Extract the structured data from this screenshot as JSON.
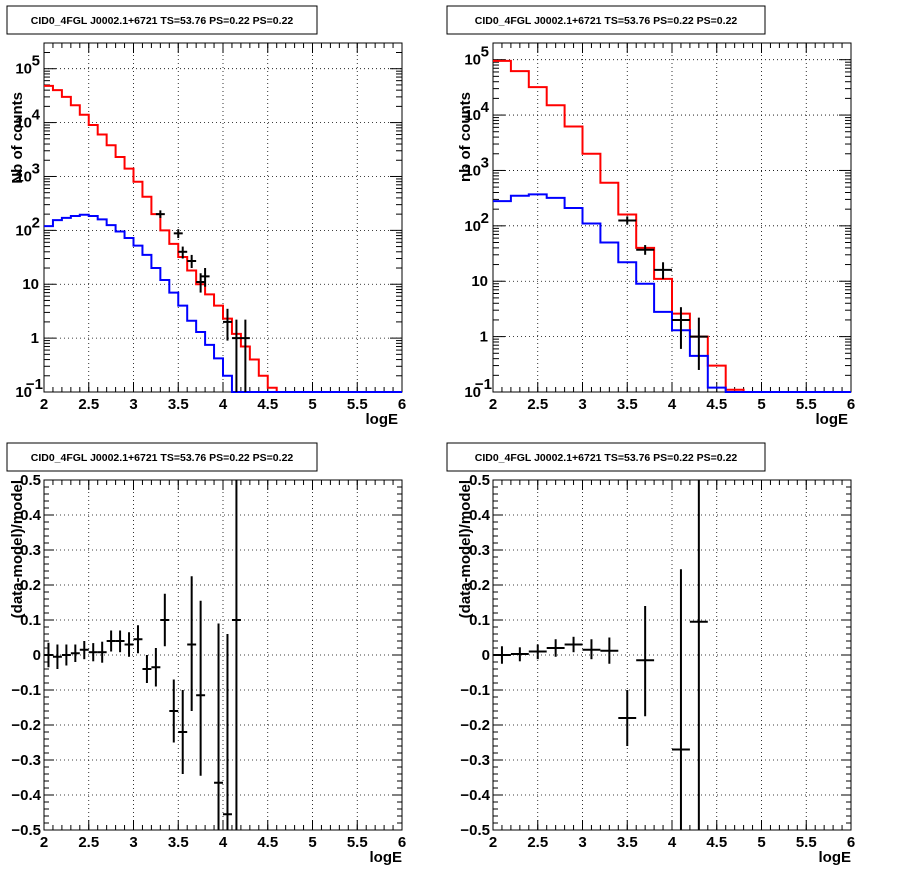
{
  "chart_data": [
    {
      "type": "line",
      "title": "CID0_4FGL J0002.1+6721 TS=53.76 PS=0.22 PS=0.22",
      "xlabel": "logE",
      "ylabel": "Nb of counts",
      "xlim": [
        2,
        6
      ],
      "ylim": [
        0.1,
        300000
      ],
      "yscale": "log",
      "grid": true,
      "x_ticks": [
        "2",
        "2.5",
        "3",
        "3.5",
        "4",
        "4.5",
        "5",
        "5.5",
        "6"
      ],
      "y_ticks": [
        {
          "value": 0.1,
          "label": "10",
          "exp": "−1"
        },
        {
          "value": 1,
          "label": "1",
          "exp": ""
        },
        {
          "value": 10,
          "label": "10",
          "exp": ""
        },
        {
          "value": 100,
          "label": "10",
          "exp": "2"
        },
        {
          "value": 1000,
          "label": "10",
          "exp": "3"
        },
        {
          "value": 10000,
          "label": "10",
          "exp": "4"
        },
        {
          "value": 100000,
          "label": "10",
          "exp": "5"
        }
      ],
      "bin_width": 0.1,
      "series": [
        {
          "color": "#ff0000",
          "style": "step",
          "x": [
            2.0,
            2.1,
            2.2,
            2.3,
            2.4,
            2.5,
            2.6,
            2.7,
            2.8,
            2.9,
            3.0,
            3.1,
            3.2,
            3.3,
            3.4,
            3.5,
            3.6,
            3.7,
            3.8,
            3.9,
            4.0,
            4.1,
            4.2,
            4.3,
            4.4,
            4.5,
            4.6,
            4.7,
            4.8,
            4.9,
            5.0,
            5.1,
            5.2,
            5.3,
            5.4,
            5.5,
            5.6,
            5.7,
            5.8,
            5.9
          ],
          "y": [
            48000,
            40000,
            30000,
            21000,
            14000,
            9000,
            6000,
            3800,
            2300,
            1400,
            800,
            420,
            200,
            100,
            56,
            32,
            18,
            10,
            6.5,
            4,
            2.3,
            1.2,
            0.7,
            0.4,
            0.2,
            0.12,
            0.1,
            0.1,
            0.1,
            0.1,
            0.1,
            0.1,
            0.1,
            0.1,
            0.1,
            0.1,
            0.1,
            0.1,
            0.1,
            0.1
          ]
        },
        {
          "color": "#0000ff",
          "style": "step",
          "x": [
            2.0,
            2.1,
            2.2,
            2.3,
            2.4,
            2.5,
            2.6,
            2.7,
            2.8,
            2.9,
            3.0,
            3.1,
            3.2,
            3.3,
            3.4,
            3.5,
            3.6,
            3.7,
            3.8,
            3.9,
            4.0,
            4.1,
            4.2,
            4.3,
            4.4,
            4.5,
            4.6,
            4.7,
            4.8,
            4.9,
            5.0,
            5.1,
            5.2,
            5.3,
            5.4,
            5.5,
            5.6,
            5.7,
            5.8,
            5.9
          ],
          "y": [
            120,
            155,
            170,
            185,
            195,
            185,
            160,
            125,
            95,
            72,
            52,
            35,
            20,
            12,
            7,
            4,
            2.1,
            1.3,
            0.75,
            0.42,
            0.2,
            0.1,
            0.1,
            0.1,
            0.1,
            0.1,
            0.1,
            0.1,
            0.1,
            0.1,
            0.1,
            0.1,
            0.1,
            0.1,
            0.1,
            0.1,
            0.1,
            0.1,
            0.1,
            0.1
          ]
        },
        {
          "color": "#000000",
          "style": "errorbar",
          "x": [
            3.3,
            3.5,
            3.55,
            3.65,
            3.75,
            3.8,
            4.05,
            4.15,
            4.25
          ],
          "y": [
            200,
            88,
            40,
            27,
            11,
            14,
            2,
            1,
            1
          ],
          "ylow": [
            170,
            72,
            30,
            20,
            7,
            9,
            0.9,
            0.1,
            0.1
          ],
          "yhigh": [
            235,
            105,
            50,
            35,
            16,
            20,
            3.5,
            2.2,
            2.2
          ]
        }
      ]
    },
    {
      "type": "line",
      "title": "CID0_4FGL J0002.1+6721 TS=53.76 PS=0.22 PS=0.22",
      "xlabel": "logE",
      "ylabel": "nb of counts",
      "xlim": [
        2,
        6
      ],
      "ylim": [
        0.1,
        200000
      ],
      "yscale": "log",
      "grid": true,
      "x_ticks": [
        "2",
        "2.5",
        "3",
        "3.5",
        "4",
        "4.5",
        "5",
        "5.5",
        "6"
      ],
      "y_ticks": [
        {
          "value": 0.1,
          "label": "10",
          "exp": "−1"
        },
        {
          "value": 1,
          "label": "1",
          "exp": ""
        },
        {
          "value": 10,
          "label": "10",
          "exp": ""
        },
        {
          "value": 100,
          "label": "10",
          "exp": "2"
        },
        {
          "value": 1000,
          "label": "10",
          "exp": "3"
        },
        {
          "value": 10000,
          "label": "10",
          "exp": "4"
        },
        {
          "value": 100000,
          "label": "10",
          "exp": "5"
        }
      ],
      "bin_width": 0.2,
      "series": [
        {
          "color": "#ff0000",
          "style": "step",
          "x": [
            2.0,
            2.2,
            2.4,
            2.6,
            2.8,
            3.0,
            3.2,
            3.4,
            3.6,
            3.8,
            4.0,
            4.2,
            4.4,
            4.6,
            4.8,
            5.0,
            5.2,
            5.4,
            5.6,
            5.8
          ],
          "y": [
            95000,
            62000,
            32000,
            15000,
            6200,
            2000,
            600,
            160,
            40,
            11,
            2.6,
            1,
            0.3,
            0.11,
            0.1,
            0.1,
            0.1,
            0.1,
            0.1,
            0.1
          ]
        },
        {
          "color": "#0000ff",
          "style": "step",
          "x": [
            2.0,
            2.2,
            2.4,
            2.6,
            2.8,
            3.0,
            3.2,
            3.4,
            3.6,
            3.8,
            4.0,
            4.2,
            4.4,
            4.6,
            4.8,
            5.0,
            5.2,
            5.4,
            5.6,
            5.8
          ],
          "y": [
            280,
            350,
            370,
            320,
            210,
            110,
            50,
            22,
            9,
            2.8,
            1.3,
            0.45,
            0.12,
            0.1,
            0.1,
            0.1,
            0.1,
            0.1,
            0.1,
            0.1
          ]
        },
        {
          "color": "#000000",
          "style": "errorbar",
          "x": [
            3.5,
            3.7,
            3.9,
            4.1,
            4.3
          ],
          "y": [
            125,
            37,
            16,
            2,
            1
          ],
          "ylow": [
            105,
            30,
            11,
            0.6,
            0.25
          ],
          "yhigh": [
            148,
            45,
            22,
            3.4,
            2.2
          ]
        }
      ]
    },
    {
      "type": "scatter",
      "title": "CID0_4FGL J0002.1+6721 TS=53.76 PS=0.22 PS=0.22",
      "xlabel": "logE",
      "ylabel": "(data-model)/model",
      "xlim": [
        2,
        6
      ],
      "ylim": [
        -0.5,
        0.5
      ],
      "grid": true,
      "x_ticks": [
        "2",
        "2.5",
        "3",
        "3.5",
        "4",
        "4.5",
        "5",
        "5.5",
        "6"
      ],
      "y_ticks": [
        "−0.5",
        "−0.4",
        "−0.3",
        "−0.2",
        "−0.1",
        "0",
        "0.1",
        "0.2",
        "0.3",
        "0.4",
        "0.5"
      ],
      "bin_width": 0.1,
      "series": [
        {
          "color": "#000000",
          "style": "errorbar",
          "x": [
            2.05,
            2.15,
            2.25,
            2.35,
            2.45,
            2.55,
            2.65,
            2.75,
            2.85,
            2.95,
            3.05,
            3.15,
            3.25,
            3.35,
            3.45,
            3.55,
            3.65,
            3.75,
            3.95,
            4.05,
            4.15
          ],
          "y": [
            0.0,
            -0.005,
            0.0,
            0.005,
            0.015,
            0.008,
            0.008,
            0.04,
            0.04,
            0.03,
            0.045,
            -0.04,
            -0.035,
            0.1,
            -0.16,
            -0.22,
            0.03,
            -0.115,
            -0.365,
            -0.455,
            0.1
          ],
          "ylow": [
            -0.035,
            -0.04,
            -0.03,
            -0.02,
            -0.012,
            -0.018,
            -0.022,
            0.01,
            0.008,
            -0.005,
            0.005,
            -0.08,
            -0.09,
            0.025,
            -0.25,
            -0.34,
            -0.16,
            -0.345,
            -0.5,
            -0.5,
            -0.5
          ],
          "yhigh": [
            0.035,
            0.03,
            0.03,
            0.03,
            0.04,
            0.034,
            0.038,
            0.07,
            0.07,
            0.065,
            0.085,
            0.0,
            0.02,
            0.175,
            -0.07,
            -0.1,
            0.225,
            0.155,
            0.09,
            0.06,
            0.5
          ]
        }
      ]
    },
    {
      "type": "scatter",
      "title": "CID0_4FGL J0002.1+6721 TS=53.76 PS=0.22 PS=0.22",
      "xlabel": "logE",
      "ylabel": "(data-model)/model",
      "xlim": [
        2,
        6
      ],
      "ylim": [
        -0.5,
        0.5
      ],
      "grid": true,
      "x_ticks": [
        "2",
        "2.5",
        "3",
        "3.5",
        "4",
        "4.5",
        "5",
        "5.5",
        "6"
      ],
      "y_ticks": [
        "−0.5",
        "−0.4",
        "−0.3",
        "−0.2",
        "−0.1",
        "0",
        "0.1",
        "0.2",
        "0.3",
        "0.4",
        "0.5"
      ],
      "bin_width": 0.2,
      "series": [
        {
          "color": "#000000",
          "style": "errorbar",
          "x": [
            2.1,
            2.3,
            2.5,
            2.7,
            2.9,
            3.1,
            3.3,
            3.5,
            3.7,
            4.1,
            4.3
          ],
          "y": [
            0.0,
            0.003,
            0.01,
            0.02,
            0.03,
            0.015,
            0.012,
            -0.18,
            -0.015,
            -0.27,
            0.095
          ],
          "ylow": [
            -0.025,
            -0.018,
            -0.012,
            -0.005,
            0.008,
            -0.012,
            -0.025,
            -0.26,
            -0.175,
            -0.5,
            -0.5
          ],
          "yhigh": [
            0.025,
            0.022,
            0.03,
            0.045,
            0.052,
            0.045,
            0.05,
            -0.1,
            0.14,
            0.245,
            0.5
          ]
        }
      ]
    }
  ]
}
